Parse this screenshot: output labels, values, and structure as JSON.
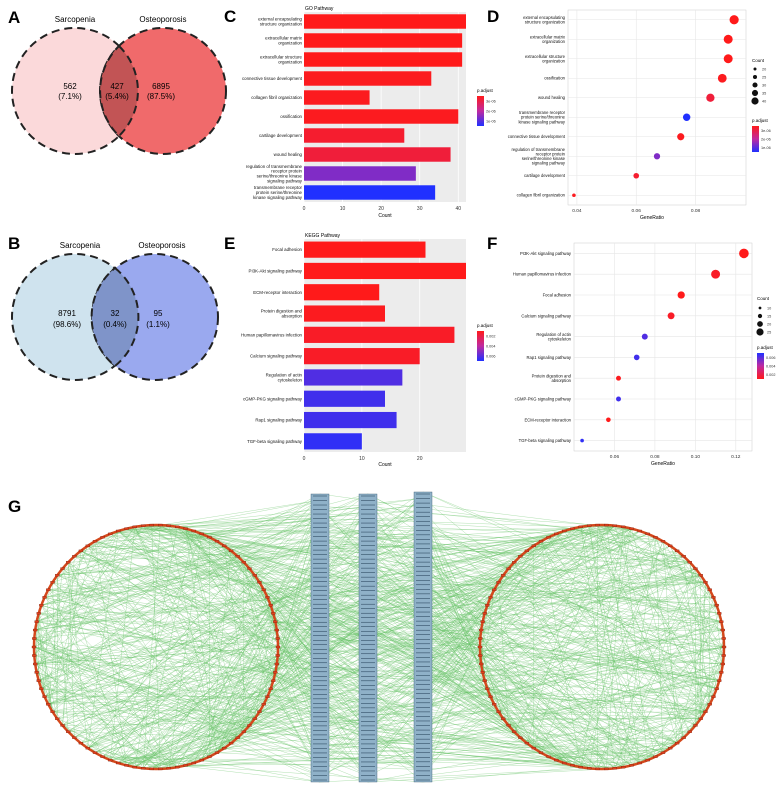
{
  "panel_labels": {
    "A": "A",
    "B": "B",
    "C": "C",
    "D": "D",
    "E": "E",
    "F": "F",
    "G": "G"
  },
  "colors": {
    "go_high": "#ff1a1a",
    "go_mid": "#e0245e",
    "go_low": "#2040ff",
    "venn_a_left": "#fbd9da",
    "venn_a_right": "#f06a6b",
    "venn_a_overlap": "#c25455",
    "venn_b_left": "#cfe3ee",
    "venn_b_right": "#9aa9ef",
    "venn_b_overlap": "#7f94c9",
    "network_edge": "#69c46a",
    "circle_node": "#e0401c",
    "column_node": "#6f97b5"
  },
  "chart_data": [
    {
      "panel": "A",
      "type": "venn",
      "sets": [
        "Sarcopenia",
        "Osteoporosis"
      ],
      "regions": [
        {
          "count": "562",
          "pct": "(7.1%)"
        },
        {
          "count": "427",
          "pct": "(5.4%)"
        },
        {
          "count": "6895",
          "pct": "(87.5%)"
        }
      ]
    },
    {
      "panel": "B",
      "type": "venn",
      "sets": [
        "Sarcopenia",
        "Osteoporosis"
      ],
      "regions": [
        {
          "count": "8791",
          "pct": "(98.6%)"
        },
        {
          "count": "32",
          "pct": "(0.4%)"
        },
        {
          "count": "95",
          "pct": "(1.1%)"
        }
      ]
    },
    {
      "panel": "C",
      "type": "bar",
      "orientation": "horizontal",
      "title": "GO Pathway",
      "xlabel": "Count",
      "xlim": [
        0,
        42
      ],
      "xticks": [
        0,
        10,
        20,
        30,
        40
      ],
      "legend_title": "p.adjust",
      "legend_ticks": [
        "3e-06",
        "2e-06",
        "1e-06"
      ],
      "categories": [
        [
          "external encapsulating",
          "structure organization"
        ],
        [
          "extracellular matrix",
          "organization"
        ],
        [
          "extracellular structure",
          "organization"
        ],
        [
          "connective tissue development"
        ],
        [
          "collagen fibril organization"
        ],
        [
          "ossification"
        ],
        [
          "cartilage development"
        ],
        [
          "wound healing"
        ],
        [
          "regulation of transmembrane",
          "receptor protein",
          "serine/threonine kinase",
          "signaling pathway"
        ],
        [
          "transmembrane receptor",
          "protein serine/threonine",
          "kinase signaling pathway"
        ]
      ],
      "values": [
        42,
        41,
        41,
        33,
        17,
        40,
        26,
        38,
        29,
        34
      ],
      "padj_level": [
        0.0,
        0.0,
        0.0,
        0.02,
        0.02,
        0.02,
        0.08,
        0.12,
        0.7,
        1.0
      ]
    },
    {
      "panel": "D",
      "type": "scatter",
      "xlabel": "GeneRatio",
      "xlim": [
        0.037,
        0.097
      ],
      "xticks": [
        0.04,
        0.06,
        0.08
      ],
      "xtick_labels": [
        "0.04",
        "0.06",
        "0.08"
      ],
      "size_legend_title": "Count",
      "size_legend": [
        "20",
        "25",
        "30",
        "35",
        "40"
      ],
      "color_legend_title": "p.adjust",
      "color_legend_ticks": [
        "3e-06",
        "2e-06",
        "1e-06"
      ],
      "categories": [
        [
          "external encapsulating",
          "structure organization"
        ],
        [
          "extracellular matrix",
          "organization"
        ],
        [
          "extracellular structure",
          "organization"
        ],
        [
          "ossification"
        ],
        [
          "wound healing"
        ],
        [
          "transmembrane receptor",
          "protein serine/threonine",
          "kinase signaling pathway"
        ],
        [
          "connective tissue development"
        ],
        [
          "regulation of transmembrane",
          "receptor protein",
          "serine/threonine kinase",
          "signaling pathway"
        ],
        [
          "cartilage development"
        ],
        [
          "collagen fibril organization"
        ]
      ],
      "x": [
        0.093,
        0.091,
        0.091,
        0.089,
        0.085,
        0.077,
        0.075,
        0.067,
        0.06,
        0.039
      ],
      "count": [
        42,
        41,
        41,
        40,
        38,
        34,
        33,
        29,
        26,
        17
      ],
      "padj_level": [
        0.0,
        0.0,
        0.0,
        0.02,
        0.12,
        1.0,
        0.02,
        0.7,
        0.08,
        0.02
      ]
    },
    {
      "panel": "E",
      "type": "bar",
      "orientation": "horizontal",
      "title": "KEGG Pathway",
      "xlabel": "Count",
      "xlim": [
        0,
        28
      ],
      "xticks": [
        0,
        10,
        20
      ],
      "legend_title": "p.adjust",
      "legend_ticks": [
        "0.002",
        "0.004",
        "0.006"
      ],
      "categories": [
        [
          "Focal adhesion"
        ],
        [
          "PI3K-Akt signaling pathway"
        ],
        [
          "ECM-receptor interaction"
        ],
        [
          "Protein digestion and",
          "absorption"
        ],
        [
          "Human papillomavirus infection"
        ],
        [
          "Calcium signaling pathway"
        ],
        [
          "Regulation of actin",
          "cytoskeleton"
        ],
        [
          "cGMP-PKG signaling pathway"
        ],
        [
          "Rap1 signaling pathway"
        ],
        [
          "TGF-beta signaling pathway"
        ]
      ],
      "values": [
        21,
        28,
        13,
        14,
        26,
        20,
        17,
        14,
        16,
        10
      ],
      "padj_level": [
        0.0,
        0.0,
        0.0,
        0.02,
        0.05,
        0.05,
        0.85,
        0.9,
        0.9,
        0.95
      ]
    },
    {
      "panel": "F",
      "type": "scatter",
      "xlabel": "GeneRatio",
      "xlim": [
        0.04,
        0.128
      ],
      "xticks": [
        0.06,
        0.08,
        0.1,
        0.12
      ],
      "xtick_labels": [
        "0.06",
        "0.08",
        "0.10",
        "0.12"
      ],
      "size_legend_title": "Count",
      "size_legend": [
        "10",
        "15",
        "20",
        "25"
      ],
      "color_legend_title": "p.adjust",
      "color_legend_ticks": [
        "0.006",
        "0.004",
        "0.002"
      ],
      "categories": [
        [
          "PI3K-Akt signaling pathway"
        ],
        [
          "Human papillomavirus infection"
        ],
        [
          "Focal adhesion"
        ],
        [
          "Calcium signaling pathway"
        ],
        [
          "Regulation of actin",
          "cytoskeleton"
        ],
        [
          "Rap1 signaling pathway"
        ],
        [
          "Protein digestion and",
          "absorption"
        ],
        [
          "cGMP-PKG signaling pathway"
        ],
        [
          "ECM-receptor interaction"
        ],
        [
          "TGF-beta signaling pathway"
        ]
      ],
      "x": [
        0.124,
        0.11,
        0.093,
        0.088,
        0.075,
        0.071,
        0.062,
        0.062,
        0.057,
        0.044
      ],
      "count": [
        28,
        26,
        21,
        20,
        17,
        16,
        14,
        14,
        13,
        10
      ],
      "padj_level": [
        0.0,
        0.05,
        0.0,
        0.05,
        0.85,
        0.9,
        0.02,
        0.9,
        0.0,
        0.95
      ]
    }
  ]
}
